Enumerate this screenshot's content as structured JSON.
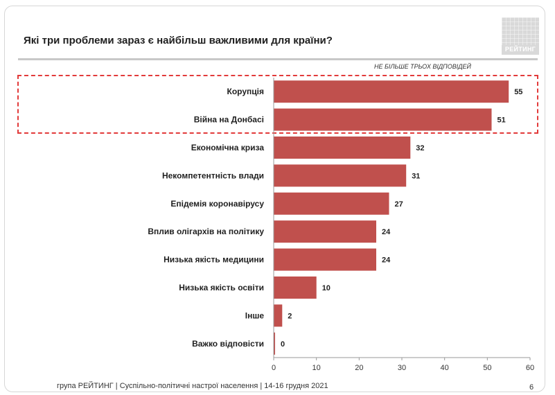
{
  "slide": {
    "title": "Які три проблеми зараз є найбільш важливими для країни?",
    "note": "НЕ БІЛЬШЕ ТРЬОХ ВІДПОВІДЕЙ",
    "logo_text": "РЕЙТИНГ",
    "footer": "група РЕЙТИНГ | Суспільно-політичні настрої населення | 14-16 грудня 2021",
    "page_number": "6"
  },
  "colors": {
    "bar": "#c0504d",
    "highlight": "#e23a3a",
    "axis": "#9a9a9a"
  },
  "chart_data": {
    "type": "bar",
    "orientation": "horizontal",
    "categories": [
      "Корупція",
      "Війна на Донбасі",
      "Економічна криза",
      "Некомпетентність влади",
      "Епідемія коронавірусу",
      "Вплив олігархів на політику",
      "Низька якість медицини",
      "Низька якість освіти",
      "Інше",
      "Важко відповісти"
    ],
    "values": [
      55,
      51,
      32,
      31,
      27,
      24,
      24,
      10,
      2,
      0
    ],
    "xlim": [
      0,
      60
    ],
    "xticks": [
      0,
      10,
      20,
      30,
      40,
      50,
      60
    ],
    "highlighted_categories": [
      "Корупція",
      "Війна на Донбасі"
    ],
    "grid": false
  }
}
